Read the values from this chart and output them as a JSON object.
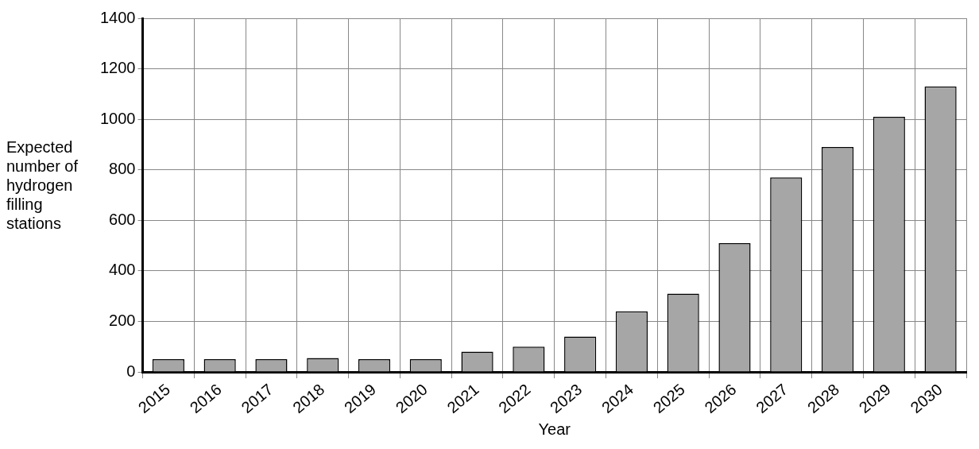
{
  "chart_data": {
    "type": "bar",
    "xlabel": "Year",
    "ylabel": "Expected\nnumber of\nhydrogen\nfilling\nstations",
    "categories": [
      "2015",
      "2016",
      "2017",
      "2018",
      "2019",
      "2020",
      "2021",
      "2022",
      "2023",
      "2024",
      "2025",
      "2026",
      "2027",
      "2028",
      "2029",
      "2030"
    ],
    "values": [
      50,
      50,
      50,
      55,
      50,
      50,
      80,
      100,
      140,
      240,
      310,
      510,
      770,
      890,
      1010,
      1130
    ],
    "color": "#a6a6a6",
    "ylim": [
      0,
      1400
    ],
    "yticks": [
      0,
      200,
      400,
      600,
      800,
      1000,
      1200,
      1400
    ],
    "grid": true,
    "legend": false
  }
}
